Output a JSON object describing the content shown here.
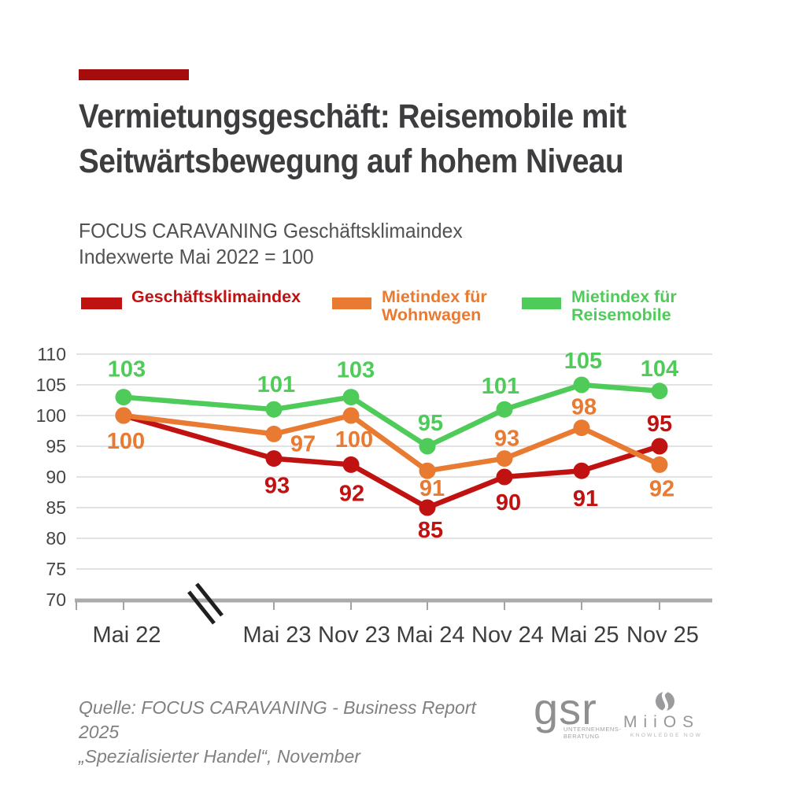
{
  "header": {
    "accent_color": "#a50d0d",
    "title": [
      "Vermietungsgeschäft: Reisemobile mit",
      "Seitwärtsbewegung auf hohem Niveau"
    ],
    "subtitle": [
      "FOCUS CARAVANING Geschäftsklimaindex",
      "Indexwerte Mai 2022 = 100"
    ]
  },
  "legend": {
    "items": [
      {
        "lines": [
          "Geschäftsklimaindex"
        ],
        "color": "#c11212"
      },
      {
        "lines": [
          "Mietindex für",
          "Wohnwagen"
        ],
        "color": "#e87a32"
      },
      {
        "lines": [
          "Mietindex für",
          "Reisemobile"
        ],
        "color": "#4fcb5a"
      }
    ]
  },
  "chart_data": {
    "type": "line",
    "title": "FOCUS CARAVANING Geschäftsklimaindex",
    "subtitle": "Indexwerte Mai 2022 = 100",
    "categories": [
      "Mai 22",
      "Mai 23",
      "Nov 23",
      "Mai 24",
      "Nov 24",
      "Mai 25",
      "Nov 25"
    ],
    "x_axis_break_after": "Mai 22",
    "ylim": [
      70,
      110
    ],
    "yticks": [
      110,
      105,
      100,
      95,
      90,
      85,
      80,
      75,
      70
    ],
    "grid": true,
    "legend_position": "top",
    "colors": {
      "grid": "#d9d9d9",
      "axis": "#ababab",
      "tick": "#a3a3a3",
      "tick_label": "#454547",
      "break_mark": "#1f1f1f"
    },
    "series": [
      {
        "name": "Geschäftsklimaindex",
        "color": "#c11212",
        "values": [
          100,
          93,
          92,
          85,
          90,
          91,
          95
        ],
        "labels": [
          "",
          "93",
          "92",
          "85",
          "90",
          "91",
          "95"
        ],
        "label_offsets": [
          [
            0,
            0
          ],
          [
            4,
            44
          ],
          [
            1,
            46
          ],
          [
            4,
            38
          ],
          [
            5,
            42
          ],
          [
            5,
            45
          ],
          [
            0,
            -19
          ]
        ]
      },
      {
        "name": "Mietindex für Wohnwagen",
        "color": "#e87a32",
        "values": [
          100,
          97,
          100,
          91,
          93,
          98,
          92
        ],
        "labels": [
          "100",
          "97",
          "100",
          "91",
          "93",
          "98",
          "92"
        ],
        "label_offsets": [
          [
            3,
            42
          ],
          [
            37,
            22
          ],
          [
            4,
            40
          ],
          [
            6,
            32
          ],
          [
            3,
            -16
          ],
          [
            3,
            -17
          ],
          [
            3,
            40
          ]
        ]
      },
      {
        "name": "Mietindex für Reisemobile",
        "color": "#4fcb5a",
        "values": [
          103,
          101,
          103,
          95,
          101,
          105,
          104
        ],
        "labels": [
          "103",
          "101",
          "103",
          "95",
          "101",
          "105",
          "104"
        ],
        "label_offsets": [
          [
            4,
            -26
          ],
          [
            3,
            -22
          ],
          [
            6,
            -25
          ],
          [
            4,
            -20
          ],
          [
            -5,
            -20
          ],
          [
            2,
            -21
          ],
          [
            0,
            -19
          ]
        ]
      }
    ]
  },
  "footer": {
    "source": [
      "Quelle: FOCUS CARAVANING - Business Report 2025",
      "„Spezialisierter Handel“, November"
    ],
    "gsr_logo": {
      "text": "gsr",
      "caption": [
        "UNTERNEHMENS-",
        "BERATUNG"
      ]
    },
    "miios_logo": {
      "text": "MiiOS",
      "tagline": "KNOWLEDGE NOW"
    }
  }
}
